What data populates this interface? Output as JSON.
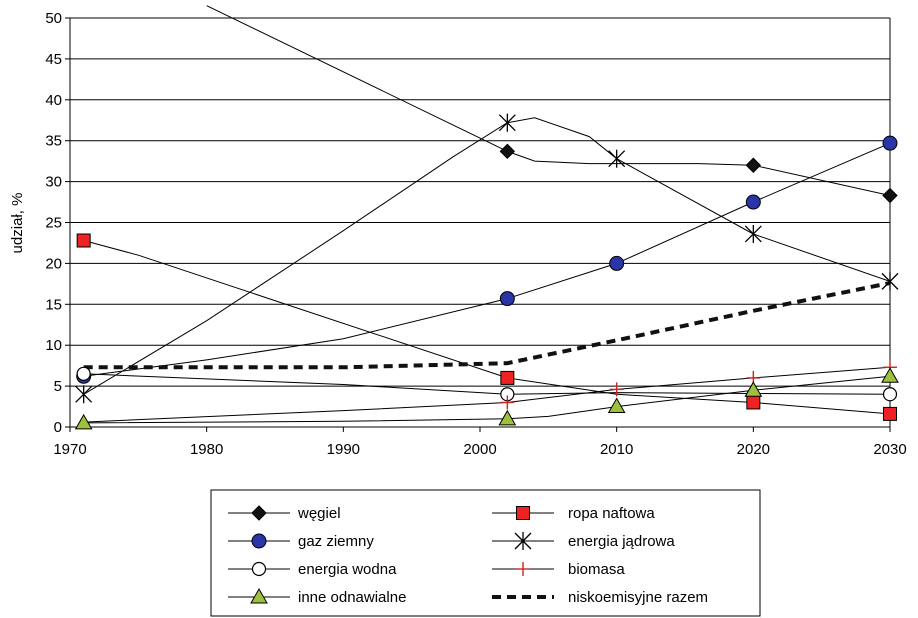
{
  "chart_data": {
    "type": "line",
    "xlabel": "",
    "ylabel": "udział, %",
    "xlim": [
      1970,
      2030
    ],
    "ylim": [
      0,
      50
    ],
    "xticks": [
      1970,
      1980,
      1990,
      2000,
      2010,
      2020,
      2030
    ],
    "yticks": [
      0,
      5,
      10,
      15,
      20,
      25,
      30,
      35,
      40,
      45,
      50
    ],
    "grid": "horizontal",
    "legend_position": "bottom",
    "series": [
      {
        "name": "węgiel",
        "marker": "diamond",
        "color": "#000000",
        "fill": "#111111",
        "dash": "solid",
        "points": [
          [
            1980,
            51.5
          ],
          [
            2002,
            33.7
          ],
          [
            2004,
            32.5
          ],
          [
            2008,
            32.2
          ],
          [
            2010,
            32.2
          ],
          [
            2016,
            32.2
          ],
          [
            2020,
            32.0
          ],
          [
            2030,
            28.3
          ]
        ],
        "marker_x": [
          2002,
          2020,
          2030
        ]
      },
      {
        "name": "ropa naftowa",
        "marker": "square",
        "color": "#000000",
        "fill": "#ee2222",
        "dash": "solid",
        "points": [
          [
            1971,
            22.8
          ],
          [
            1975,
            21.0
          ],
          [
            2002,
            6.0
          ],
          [
            2010,
            4.0
          ],
          [
            2020,
            3.0
          ],
          [
            2030,
            1.6
          ]
        ],
        "marker_x": [
          1971,
          2002,
          2020,
          2030
        ]
      },
      {
        "name": "gaz ziemny",
        "marker": "circle",
        "color": "#000000",
        "fill": "#2a35a8",
        "dash": "solid",
        "points": [
          [
            1971,
            6.2
          ],
          [
            1980,
            8.2
          ],
          [
            1990,
            10.8
          ],
          [
            2002,
            15.7
          ],
          [
            2010,
            20.0
          ],
          [
            2020,
            27.5
          ],
          [
            2030,
            34.7
          ]
        ],
        "marker_x": [
          1971,
          2002,
          2010,
          2020,
          2030
        ]
      },
      {
        "name": "energia jądrowa",
        "marker": "asterisk",
        "color": "#000000",
        "fill": "none",
        "dash": "solid",
        "points": [
          [
            1971,
            4.0
          ],
          [
            1980,
            13.0
          ],
          [
            1990,
            24.0
          ],
          [
            1998,
            33.0
          ],
          [
            2002,
            37.2
          ],
          [
            2004,
            37.8
          ],
          [
            2008,
            35.5
          ],
          [
            2010,
            32.8
          ],
          [
            2020,
            23.6
          ],
          [
            2030,
            17.8
          ]
        ],
        "marker_x": [
          1971,
          2002,
          2010,
          2020,
          2030
        ]
      },
      {
        "name": "energia wodna",
        "marker": "circle-open",
        "color": "#000000",
        "fill": "#ffffff",
        "dash": "solid",
        "points": [
          [
            1971,
            6.5
          ],
          [
            1990,
            5.2
          ],
          [
            2002,
            4.0
          ],
          [
            2010,
            4.2
          ],
          [
            2020,
            4.1
          ],
          [
            2030,
            4.0
          ]
        ],
        "marker_x": [
          1971,
          2002,
          2030
        ]
      },
      {
        "name": "biomasa",
        "marker": "plus",
        "color": "#000000",
        "fill": "#cc2222",
        "dash": "solid",
        "points": [
          [
            1971,
            0.6
          ],
          [
            1990,
            2.0
          ],
          [
            2002,
            3.0
          ],
          [
            2010,
            4.6
          ],
          [
            2020,
            6.0
          ],
          [
            2030,
            7.3
          ]
        ],
        "marker_x": [
          2002,
          2010,
          2020,
          2030
        ]
      },
      {
        "name": "inne odnawialne",
        "marker": "triangle",
        "color": "#000000",
        "fill": "#9dc13c",
        "dash": "solid",
        "points": [
          [
            1971,
            0.5
          ],
          [
            1990,
            0.7
          ],
          [
            2002,
            1.0
          ],
          [
            2005,
            1.3
          ],
          [
            2010,
            2.5
          ],
          [
            2020,
            4.5
          ],
          [
            2030,
            6.2
          ]
        ],
        "marker_x": [
          1971,
          2002,
          2010,
          2020,
          2030
        ]
      },
      {
        "name": "niskoemisyjne razem",
        "marker": "none",
        "color": "#111111",
        "fill": "none",
        "dash": "dashed",
        "points": [
          [
            1971,
            7.3
          ],
          [
            1990,
            7.3
          ],
          [
            2002,
            7.8
          ],
          [
            2010,
            10.6
          ],
          [
            2020,
            14.2
          ],
          [
            2030,
            17.6
          ]
        ],
        "marker_x": []
      }
    ]
  }
}
